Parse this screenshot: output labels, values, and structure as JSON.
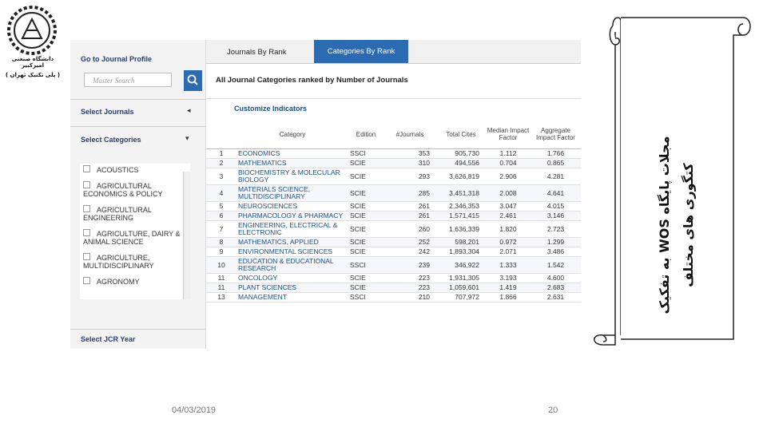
{
  "logo": {
    "line1": "دانشگاه صنعتی امیرکبیر",
    "line2": "( پلی تکنیک تهران )"
  },
  "sidebar": {
    "profile_title": "Go to Journal Profile",
    "search_placeholder": "Master Search",
    "select_journals": "Select Journals",
    "select_categories": "Select Categories",
    "categories": [
      "ACOUSTICS",
      "AGRICULTURAL ECONOMICS & POLICY",
      "AGRICULTURAL ENGINEERING",
      "AGRICULTURE, DAIRY & ANIMAL SCIENCE",
      "AGRICULTURE, MULTIDISCIPLINARY",
      "AGRONOMY"
    ],
    "select_year": "Select JCR Year"
  },
  "tabs": [
    "Journals By Rank",
    "Categories By Rank"
  ],
  "heading": "All Journal Categories ranked by Number of Journals",
  "customize": "Customize Indicators",
  "table": {
    "headers": [
      "Category",
      "Edition",
      "#Journals",
      "Total Cites",
      "Median Impact Factor",
      "Aggregate Impact Factor"
    ],
    "rows": [
      [
        "1",
        "ECONOMICS",
        "SSCI",
        "353",
        "905,730",
        "1.112",
        "1.766"
      ],
      [
        "2",
        "MATHEMATICS",
        "SCIE",
        "310",
        "494,556",
        "0.704",
        "0.865"
      ],
      [
        "3",
        "BIOCHEMISTRY & MOLECULAR BIOLOGY",
        "SCIE",
        "293",
        "3,626,819",
        "2.906",
        "4.281"
      ],
      [
        "4",
        "MATERIALS SCIENCE, MULTIDISCIPLINARY",
        "SCIE",
        "285",
        "3,451,318",
        "2.008",
        "4.641"
      ],
      [
        "5",
        "NEUROSCIENCES",
        "SCIE",
        "261",
        "2,346,353",
        "3.047",
        "4.015"
      ],
      [
        "6",
        "PHARMACOLOGY & PHARMACY",
        "SCIE",
        "261",
        "1,571,415",
        "2.461",
        "3.146"
      ],
      [
        "7",
        "ENGINEERING, ELECTRICAL & ELECTRONIC",
        "SCIE",
        "260",
        "1,636,339",
        "1.820",
        "2.723"
      ],
      [
        "8",
        "MATHEMATICS, APPLIED",
        "SCIE",
        "252",
        "598,201",
        "0.972",
        "1.299"
      ],
      [
        "9",
        "ENVIRONMENTAL SCIENCES",
        "SCIE",
        "242",
        "1,893,304",
        "2.071",
        "3.486"
      ],
      [
        "10",
        "EDUCATION & EDUCATIONAL RESEARCH",
        "SSCI",
        "239",
        "346,922",
        "1.333",
        "1.542"
      ],
      [
        "11",
        "ONCOLOGY",
        "SCIE",
        "223",
        "1,931,305",
        "3.193",
        "4.600"
      ],
      [
        "11",
        "PLANT SCIENCES",
        "SCIE",
        "223",
        "1,059,601",
        "1.419",
        "2.683"
      ],
      [
        "13",
        "MANAGEMENT",
        "SSCI",
        "210",
        "707,972",
        "1.866",
        "2.631"
      ]
    ]
  },
  "slide_title": [
    "مجلات پایگاه WOS به تفکیک",
    "کتگوری های مختلف"
  ],
  "footer": {
    "date": "04/03/2019",
    "page": "20"
  }
}
